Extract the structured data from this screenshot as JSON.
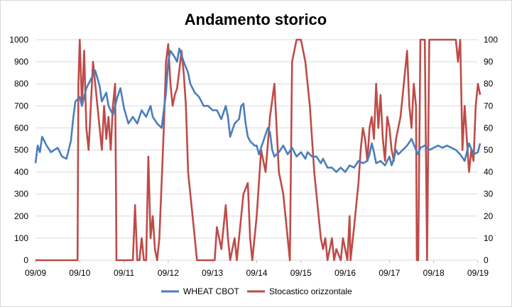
{
  "chart_data": {
    "type": "line",
    "title": "Andamento storico",
    "x_tick_labels": [
      "09/09",
      "09/10",
      "09/11",
      "09/12",
      "09/13",
      "09/14",
      "09/15",
      "09/16",
      "09/17",
      "09/18",
      "09/19"
    ],
    "y_left": {
      "lim": [
        0,
        1000
      ],
      "ticks": [
        0,
        100,
        200,
        300,
        400,
        500,
        600,
        700,
        800,
        900,
        1000
      ]
    },
    "y_right": {
      "lim": [
        0,
        100
      ],
      "ticks": [
        0,
        10,
        20,
        30,
        40,
        50,
        60,
        70,
        80,
        90,
        100
      ]
    },
    "grid": "horizontal",
    "legend_position": "bottom",
    "series": [
      {
        "name": "WHEAT CBOT",
        "axis": "left",
        "color": "#4a7ebb",
        "points": [
          [
            0.0,
            440
          ],
          [
            0.05,
            520
          ],
          [
            0.1,
            490
          ],
          [
            0.15,
            560
          ],
          [
            0.25,
            520
          ],
          [
            0.35,
            490
          ],
          [
            0.5,
            510
          ],
          [
            0.6,
            470
          ],
          [
            0.7,
            460
          ],
          [
            0.8,
            540
          ],
          [
            0.85,
            640
          ],
          [
            0.9,
            720
          ],
          [
            1.0,
            740
          ],
          [
            1.05,
            700
          ],
          [
            1.15,
            780
          ],
          [
            1.25,
            820
          ],
          [
            1.35,
            860
          ],
          [
            1.45,
            790
          ],
          [
            1.5,
            720
          ],
          [
            1.6,
            760
          ],
          [
            1.65,
            700
          ],
          [
            1.75,
            660
          ],
          [
            1.85,
            740
          ],
          [
            1.92,
            780
          ],
          [
            2.0,
            690
          ],
          [
            2.1,
            620
          ],
          [
            2.2,
            650
          ],
          [
            2.3,
            620
          ],
          [
            2.4,
            680
          ],
          [
            2.5,
            650
          ],
          [
            2.6,
            700
          ],
          [
            2.65,
            650
          ],
          [
            2.75,
            620
          ],
          [
            2.85,
            600
          ],
          [
            2.95,
            760
          ],
          [
            3.0,
            900
          ],
          [
            3.05,
            950
          ],
          [
            3.15,
            920
          ],
          [
            3.2,
            900
          ],
          [
            3.25,
            960
          ],
          [
            3.35,
            900
          ],
          [
            3.45,
            850
          ],
          [
            3.5,
            800
          ],
          [
            3.6,
            760
          ],
          [
            3.7,
            740
          ],
          [
            3.8,
            700
          ],
          [
            3.9,
            700
          ],
          [
            4.0,
            680
          ],
          [
            4.1,
            680
          ],
          [
            4.2,
            640
          ],
          [
            4.3,
            700
          ],
          [
            4.35,
            650
          ],
          [
            4.4,
            560
          ],
          [
            4.5,
            620
          ],
          [
            4.6,
            640
          ],
          [
            4.65,
            700
          ],
          [
            4.7,
            710
          ],
          [
            4.75,
            620
          ],
          [
            4.8,
            560
          ],
          [
            4.85,
            540
          ],
          [
            4.95,
            520
          ],
          [
            5.0,
            520
          ],
          [
            5.05,
            480
          ],
          [
            5.15,
            540
          ],
          [
            5.25,
            600
          ],
          [
            5.3,
            580
          ],
          [
            5.35,
            500
          ],
          [
            5.4,
            470
          ],
          [
            5.5,
            490
          ],
          [
            5.6,
            520
          ],
          [
            5.7,
            480
          ],
          [
            5.8,
            510
          ],
          [
            5.9,
            470
          ],
          [
            6.0,
            490
          ],
          [
            6.1,
            460
          ],
          [
            6.15,
            490
          ],
          [
            6.25,
            470
          ],
          [
            6.35,
            470
          ],
          [
            6.45,
            440
          ],
          [
            6.5,
            460
          ],
          [
            6.6,
            420
          ],
          [
            6.7,
            420
          ],
          [
            6.8,
            400
          ],
          [
            6.9,
            420
          ],
          [
            7.0,
            400
          ],
          [
            7.1,
            430
          ],
          [
            7.2,
            420
          ],
          [
            7.3,
            450
          ],
          [
            7.4,
            440
          ],
          [
            7.5,
            450
          ],
          [
            7.55,
            480
          ],
          [
            7.6,
            530
          ],
          [
            7.65,
            490
          ],
          [
            7.7,
            440
          ],
          [
            7.8,
            450
          ],
          [
            7.9,
            430
          ],
          [
            8.0,
            470
          ],
          [
            8.05,
            430
          ],
          [
            8.1,
            460
          ],
          [
            8.15,
            500
          ],
          [
            8.2,
            480
          ],
          [
            8.3,
            500
          ],
          [
            8.4,
            520
          ],
          [
            8.5,
            550
          ],
          [
            8.6,
            500
          ],
          [
            8.65,
            480
          ],
          [
            8.7,
            510
          ],
          [
            8.8,
            520
          ],
          [
            8.9,
            500
          ],
          [
            9.0,
            510
          ],
          [
            9.1,
            520
          ],
          [
            9.2,
            510
          ],
          [
            9.3,
            520
          ],
          [
            9.4,
            510
          ],
          [
            9.5,
            500
          ],
          [
            9.6,
            480
          ],
          [
            9.7,
            450
          ],
          [
            9.8,
            530
          ],
          [
            9.9,
            480
          ],
          [
            10.0,
            490
          ],
          [
            10.05,
            530
          ]
        ]
      },
      {
        "name": "Stocastico orizzontale",
        "axis": "right",
        "color": "#be4b48",
        "points": [
          [
            0.0,
            0
          ],
          [
            0.95,
            0
          ],
          [
            0.97,
            80
          ],
          [
            1.0,
            100
          ],
          [
            1.05,
            70
          ],
          [
            1.1,
            95
          ],
          [
            1.15,
            60
          ],
          [
            1.2,
            50
          ],
          [
            1.25,
            70
          ],
          [
            1.3,
            90
          ],
          [
            1.35,
            80
          ],
          [
            1.4,
            70
          ],
          [
            1.45,
            60
          ],
          [
            1.5,
            50
          ],
          [
            1.55,
            70
          ],
          [
            1.6,
            55
          ],
          [
            1.65,
            65
          ],
          [
            1.7,
            50
          ],
          [
            1.75,
            70
          ],
          [
            1.8,
            80
          ],
          [
            1.82,
            30
          ],
          [
            1.83,
            0
          ],
          [
            2.2,
            0
          ],
          [
            2.25,
            25
          ],
          [
            2.28,
            10
          ],
          [
            2.3,
            0
          ],
          [
            2.35,
            0
          ],
          [
            2.4,
            10
          ],
          [
            2.45,
            0
          ],
          [
            2.5,
            0
          ],
          [
            2.55,
            47
          ],
          [
            2.6,
            10
          ],
          [
            2.65,
            20
          ],
          [
            2.7,
            5
          ],
          [
            2.75,
            0
          ],
          [
            2.8,
            10
          ],
          [
            2.85,
            35
          ],
          [
            2.9,
            60
          ],
          [
            2.95,
            90
          ],
          [
            3.0,
            98
          ],
          [
            3.05,
            80
          ],
          [
            3.1,
            70
          ],
          [
            3.15,
            75
          ],
          [
            3.2,
            78
          ],
          [
            3.25,
            86
          ],
          [
            3.3,
            95
          ],
          [
            3.35,
            85
          ],
          [
            3.4,
            70
          ],
          [
            3.45,
            40
          ],
          [
            3.5,
            30
          ],
          [
            3.55,
            20
          ],
          [
            3.6,
            10
          ],
          [
            3.65,
            0
          ],
          [
            4.05,
            0
          ],
          [
            4.1,
            15
          ],
          [
            4.2,
            5
          ],
          [
            4.3,
            25
          ],
          [
            4.35,
            10
          ],
          [
            4.4,
            0
          ],
          [
            4.5,
            10
          ],
          [
            4.55,
            0
          ],
          [
            4.7,
            30
          ],
          [
            4.8,
            35
          ],
          [
            4.85,
            10
          ],
          [
            4.9,
            0
          ],
          [
            5.0,
            20
          ],
          [
            5.1,
            50
          ],
          [
            5.2,
            40
          ],
          [
            5.3,
            65
          ],
          [
            5.4,
            80
          ],
          [
            5.5,
            40
          ],
          [
            5.6,
            30
          ],
          [
            5.7,
            10
          ],
          [
            5.75,
            0
          ],
          [
            5.8,
            90
          ],
          [
            5.9,
            100
          ],
          [
            6.0,
            100
          ],
          [
            6.1,
            90
          ],
          [
            6.2,
            70
          ],
          [
            6.3,
            40
          ],
          [
            6.35,
            30
          ],
          [
            6.4,
            20
          ],
          [
            6.45,
            10
          ],
          [
            6.5,
            5
          ],
          [
            6.55,
            10
          ],
          [
            6.6,
            0
          ],
          [
            6.7,
            10
          ],
          [
            6.75,
            0
          ],
          [
            6.8,
            5
          ],
          [
            6.9,
            0
          ],
          [
            6.95,
            10
          ],
          [
            7.05,
            0
          ],
          [
            7.1,
            20
          ],
          [
            7.12,
            0
          ],
          [
            7.2,
            15
          ],
          [
            7.3,
            35
          ],
          [
            7.35,
            50
          ],
          [
            7.4,
            60
          ],
          [
            7.45,
            55
          ],
          [
            7.5,
            45
          ],
          [
            7.55,
            60
          ],
          [
            7.6,
            65
          ],
          [
            7.65,
            55
          ],
          [
            7.7,
            80
          ],
          [
            7.75,
            60
          ],
          [
            7.8,
            75
          ],
          [
            7.85,
            55
          ],
          [
            7.9,
            45
          ],
          [
            7.95,
            65
          ],
          [
            8.0,
            60
          ],
          [
            8.05,
            50
          ],
          [
            8.1,
            45
          ],
          [
            8.15,
            55
          ],
          [
            8.25,
            65
          ],
          [
            8.35,
            85
          ],
          [
            8.4,
            95
          ],
          [
            8.45,
            70
          ],
          [
            8.5,
            60
          ],
          [
            8.55,
            80
          ],
          [
            8.6,
            70
          ],
          [
            8.62,
            0
          ],
          [
            8.65,
            0
          ],
          [
            8.7,
            100
          ],
          [
            8.8,
            100
          ],
          [
            8.85,
            0
          ],
          [
            8.9,
            100
          ],
          [
            9.5,
            100
          ],
          [
            9.55,
            90
          ],
          [
            9.6,
            100
          ],
          [
            9.65,
            50
          ],
          [
            9.7,
            70
          ],
          [
            9.75,
            55
          ],
          [
            9.8,
            40
          ],
          [
            9.85,
            50
          ],
          [
            9.9,
            45
          ],
          [
            9.95,
            70
          ],
          [
            10.0,
            80
          ],
          [
            10.05,
            75
          ]
        ]
      }
    ]
  }
}
